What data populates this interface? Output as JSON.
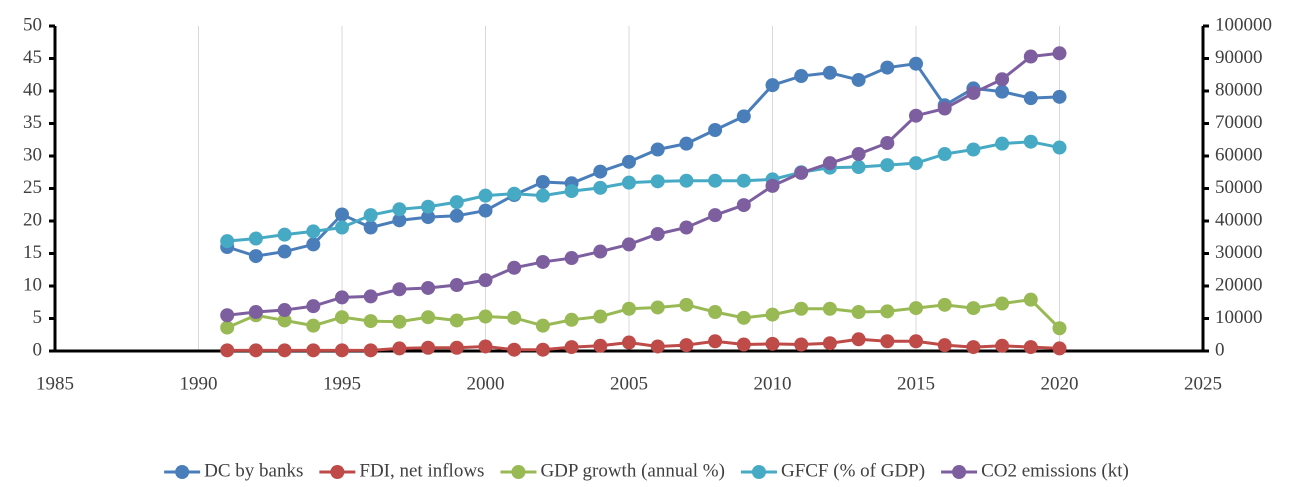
{
  "chart_data": {
    "type": "line",
    "x": [
      1991,
      1992,
      1993,
      1994,
      1995,
      1996,
      1997,
      1998,
      1999,
      2000,
      2001,
      2002,
      2003,
      2004,
      2005,
      2006,
      2007,
      2008,
      2009,
      2010,
      2011,
      2012,
      2013,
      2014,
      2015,
      2016,
      2017,
      2018,
      2019,
      2020
    ],
    "series": [
      {
        "name": "DC by banks",
        "color": "#4a7ebb",
        "values": [
          16,
          14.6,
          15.3,
          16.4,
          21,
          19,
          20.1,
          20.6,
          20.8,
          21.6,
          24,
          26,
          25.8,
          27.6,
          29.1,
          31,
          31.9,
          34,
          36.1,
          40.9,
          42.3,
          42.8,
          41.7,
          43.6,
          44.2,
          37.8,
          40.4,
          39.9,
          38.9,
          39.1
        ]
      },
      {
        "name": "FDI, net inflows",
        "color": "#be4b48",
        "values": [
          0.1,
          0.1,
          0.1,
          0.1,
          0.1,
          0.1,
          0.4,
          0.5,
          0.5,
          0.7,
          0.2,
          0.2,
          0.6,
          0.8,
          1.3,
          0.7,
          0.9,
          1.5,
          1,
          1.1,
          1,
          1.2,
          1.8,
          1.5,
          1.5,
          0.9,
          0.6,
          0.8,
          0.6,
          0.4
        ]
      },
      {
        "name": "GDP growth (annual %)",
        "color": "#98b954",
        "values": [
          3.6,
          5.5,
          4.7,
          3.9,
          5.2,
          4.6,
          4.5,
          5.2,
          4.7,
          5.3,
          5.1,
          3.9,
          4.8,
          5.3,
          6.5,
          6.7,
          7.1,
          6,
          5.1,
          5.6,
          6.5,
          6.5,
          6,
          6.1,
          6.6,
          7.1,
          6.6,
          7.3,
          7.9,
          3.5
        ]
      },
      {
        "name": "GFCF (% of GDP)",
        "color": "#46aac5",
        "values": [
          16.9,
          17.3,
          17.9,
          18.4,
          19,
          20.9,
          21.8,
          22.2,
          22.9,
          23.9,
          24.2,
          23.9,
          24.6,
          25.1,
          25.9,
          26.1,
          26.2,
          26.2,
          26.2,
          26.4,
          27.5,
          28.2,
          28.3,
          28.6,
          28.9,
          30.3,
          31,
          31.9,
          32.2,
          31.3
        ]
      },
      {
        "name": "CO2 emissions (kt)",
        "color": "#7d5fa0",
        "axis": "y2",
        "values": [
          11000,
          12000,
          12600,
          13800,
          16500,
          16800,
          19000,
          19400,
          20300,
          21800,
          25600,
          27400,
          28600,
          30600,
          32800,
          36000,
          38000,
          41800,
          44900,
          50800,
          54800,
          57800,
          60600,
          64000,
          72400,
          74600,
          79400,
          83600,
          90600,
          91600
        ]
      }
    ],
    "xlim": [
      1985,
      2025
    ],
    "xticks": [
      1985,
      1990,
      1995,
      2000,
      2005,
      2010,
      2015,
      2020,
      2025
    ],
    "ylim": [
      0,
      50
    ],
    "yticks": [
      0,
      5,
      10,
      15,
      20,
      25,
      30,
      35,
      40,
      45,
      50
    ],
    "y2lim": [
      0,
      100000
    ],
    "y2ticks": [
      0,
      10000,
      20000,
      30000,
      40000,
      50000,
      60000,
      70000,
      80000,
      90000,
      100000
    ],
    "grid": "x",
    "legend": "bottom"
  }
}
